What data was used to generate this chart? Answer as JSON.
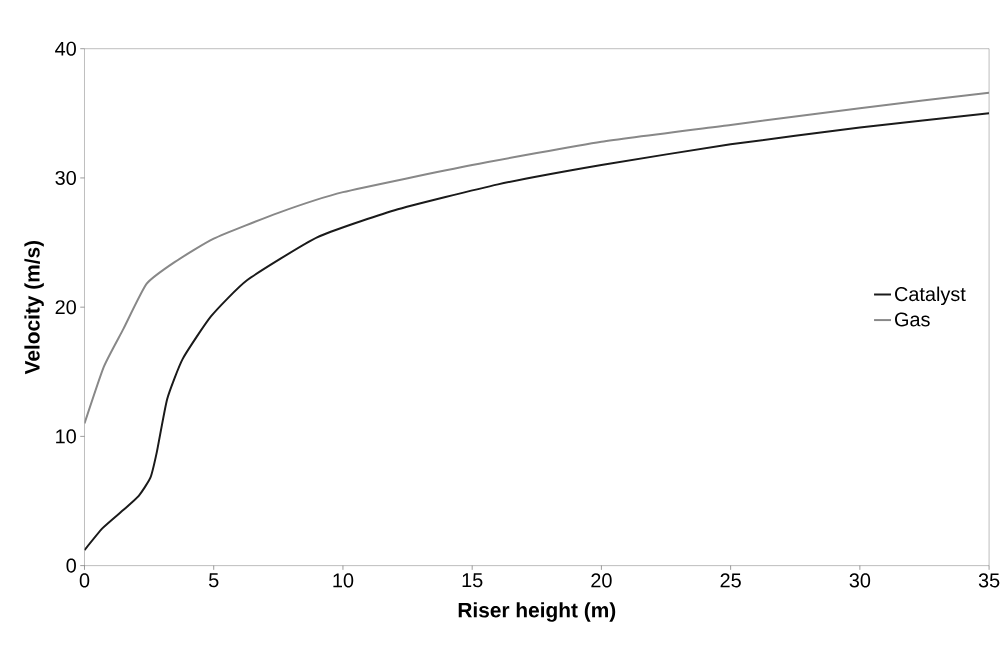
{
  "chart_data": {
    "type": "line",
    "xlabel": "Riser height (m)",
    "ylabel": "Velocity (m/s)",
    "xlim": [
      0,
      35
    ],
    "ylim": [
      0,
      40
    ],
    "xticks": [
      0,
      5,
      10,
      15,
      20,
      25,
      30,
      35
    ],
    "yticks": [
      0,
      10,
      20,
      30,
      40
    ],
    "grid": false,
    "legend": "right",
    "marker": "none",
    "line_style": "solid",
    "series": [
      {
        "name": "Catalyst",
        "color": "#1a1a1a",
        "x": [
          0,
          0.7,
          1.5,
          2.1,
          2.55,
          2.8,
          3.2,
          3.8,
          4.9,
          6.3,
          9,
          12,
          16,
          20,
          25,
          30,
          35
        ],
        "values": [
          1.2,
          2.9,
          4.3,
          5.4,
          6.8,
          8.8,
          12.9,
          16.0,
          19.3,
          22.1,
          25.4,
          27.5,
          29.5,
          31.0,
          32.6,
          33.9,
          35.0
        ]
      },
      {
        "name": "Gas",
        "color": "#888888",
        "x": [
          0,
          0.75,
          1.5,
          2.4,
          3.5,
          5,
          7.5,
          10,
          15,
          20,
          25,
          30,
          35
        ],
        "values": [
          11.0,
          15.4,
          18.3,
          21.8,
          23.5,
          25.3,
          27.3,
          28.9,
          31.0,
          32.8,
          34.1,
          35.4,
          36.6
        ]
      }
    ]
  }
}
